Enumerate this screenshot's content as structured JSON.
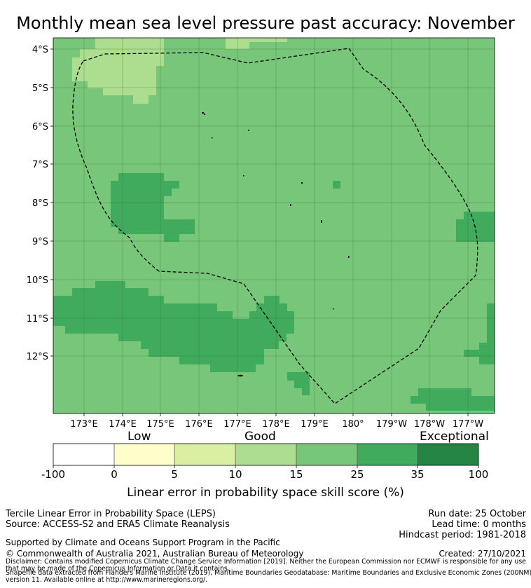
{
  "title": "Monthly mean sea level pressure past accuracy: November",
  "map": {
    "lat_ticks": [
      "4°S",
      "5°S",
      "6°S",
      "7°S",
      "8°S",
      "9°S",
      "10°S",
      "11°S",
      "12°S"
    ],
    "lon_ticks": [
      "173°E",
      "174°E",
      "175°E",
      "176°E",
      "177°E",
      "178°E",
      "179°E",
      "180°",
      "179°W",
      "178°W",
      "177°W"
    ],
    "lon_range_deg_east": [
      172.2,
      183.7
    ],
    "lat_range_deg": [
      -13.5,
      -3.7
    ],
    "background_skill_class": "15-25",
    "boundary": "Exclusive Economic Zone (dashed)"
  },
  "colorbar": {
    "categories": [
      "Low",
      "Good",
      "Exceptional"
    ],
    "tick_labels": [
      "-100",
      "0",
      "5",
      "10",
      "15",
      "25",
      "35",
      "100"
    ],
    "colors": [
      "#ffffff",
      "#ffffcc",
      "#d9f0a3",
      "#addd8e",
      "#78c679",
      "#41ab5d",
      "#238443"
    ],
    "title": "Linear error in probability space skill score (%)"
  },
  "footer": {
    "method": "Tercile Linear Error in Probability Space (LEPS)",
    "source": "Source: ACCESS-S2 and ERA5 Climate Reanalysis",
    "run_date": "Run date: 25 October",
    "lead_time": "Lead time: 0 months",
    "hindcast": "Hindcast period: 1981-2018",
    "supported": "Supported by Climate and Oceans Support Program in the Pacific",
    "copyright": "© Commonwealth of Australia 2021, Australian Bureau of Meteorology",
    "created": "Created: 27/10/2021",
    "disclaimer_1": "Disclaimer: Contains modified Copernicus Climate Change Service Information [2019]. Neither the European Commission nor ECMWF is responsible for any use",
    "disclaimer_2": "that may be made of the Copernicus Information or Data it contains.",
    "shapefile_1": "Shapefile data extracted from Flanders Marine Institute (2019), Maritime Boundaries Geodatabase: Maritime Boundaries and Exclusive Economic Zones (200NM),",
    "shapefile_2": "version 11. Available online at http://www.marineregions.org/."
  }
}
